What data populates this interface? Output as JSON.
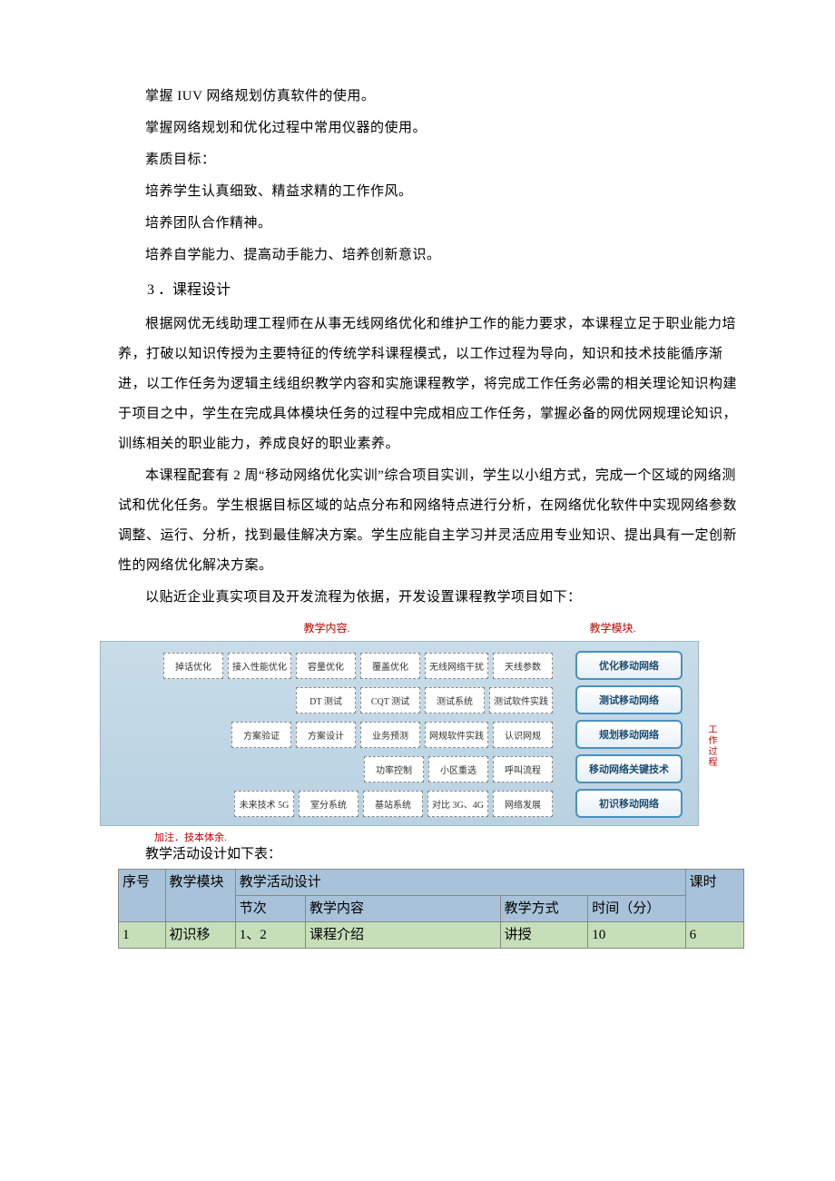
{
  "paragraphs": {
    "p1": "掌握 IUV 网络规划仿真软件的使用。",
    "p2": "掌握网络规划和优化过程中常用仪器的使用。",
    "p3": "素质目标：",
    "p4": "培养学生认真细致、精益求精的工作作风。",
    "p5": "培养团队合作精神。",
    "p6": "培养自学能力、提高动手能力、培养创新意识。",
    "section3": "3 ．课程设计",
    "p7": "根据网优无线助理工程师在从事无线网络优化和维护工作的能力要求，本课程立足于职业能力培养，打破以知识传授为主要特征的传统学科课程模式，以工作过程为导向，知识和技术技能循序渐进，以工作任务为逻辑主线组织教学内容和实施课程教学，将完成工作任务必需的相关理论知识构建于项目之中，学生在完成具体模块任务的过程中完成相应工作任务，掌握必备的网优网规理论知识，训练相关的职业能力，养成良好的职业素养。",
    "p8": "本课程配套有 2 周“移动网络优化实训”综合项目实训，学生以小组方式，完成一个区域的网络测试和优化任务。学生根据目标区域的站点分布和网络特点进行分析，在网络优化软件中实现网络参数调整、运行、分析，找到最佳解决方案。学生应能自主学习并灵活应用专业知识、提出具有一定创新性的网络优化解决方案。",
    "p9": "以贴近企业真实项目及开发流程为依据，开发设置课程教学项目如下：",
    "tbl_intro": "教学活动设计如下表："
  },
  "diagram": {
    "header_left": "教学内容.",
    "header_right": "教学模块.",
    "side_label": "工作过程",
    "annotation": "加注．技本体余.",
    "rows": [
      {
        "cells": [
          "掉话优化",
          "接入性能优化",
          "容量优化",
          "覆盖优化",
          "无线网络干扰",
          "天线参数"
        ],
        "module": "优化移动网络"
      },
      {
        "cells": [
          "DT 测试",
          "CQT 测试",
          "测试系统",
          "测试软件实践"
        ],
        "module": "测试移动网络"
      },
      {
        "cells": [
          "方案验证",
          "方案设计",
          "业务预测",
          "网规软件实践",
          "认识网规"
        ],
        "module": "规划移动网络"
      },
      {
        "cells": [
          "功率控制",
          "小区重选",
          "呼叫流程"
        ],
        "module": "移动网络关键技术"
      },
      {
        "cells": [
          "未来技术 5G",
          "室分系统",
          "基站系统",
          "对比 3G、4G",
          "网络发展"
        ],
        "module": "初识移动网络"
      }
    ],
    "colors": {
      "header_text": "#c00000",
      "body_bg_top": "#c9dce8",
      "body_bg_bottom": "#b8d2e2",
      "body_border": "#9ab6c8",
      "cell_bg": "#ffffff",
      "cell_border": "#888888",
      "mod_border": "#4a90c0",
      "mod_text": "#1a4d73"
    }
  },
  "activity_table": {
    "headers_row1": {
      "seq": "序号",
      "module": "教学模块",
      "design": "教学活动设计",
      "hours": "课时"
    },
    "headers_row2": {
      "section": "节次",
      "content": "教学内容",
      "method": "教学方式",
      "time": "时间（分）"
    },
    "rows": [
      {
        "seq": "1",
        "module": "初识移",
        "section": "1、2",
        "content": "课程介绍",
        "method": "讲授",
        "time": "10",
        "hours": "6"
      }
    ],
    "colors": {
      "header_bg": "#a8c3d9",
      "data_bg": "#c6dfb8",
      "border": "#888888"
    }
  }
}
